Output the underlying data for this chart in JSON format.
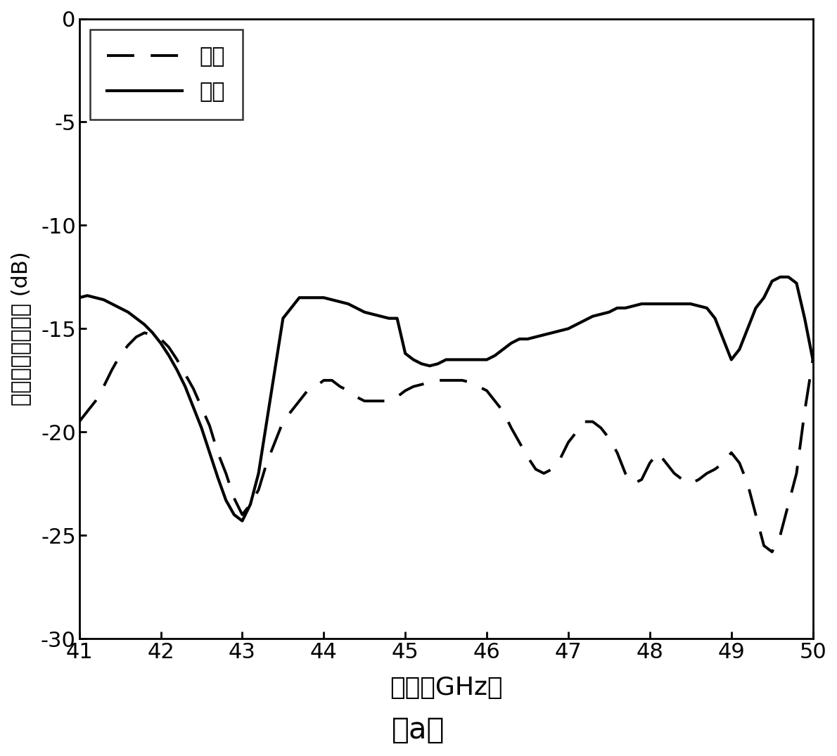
{
  "title_sub": "（a）",
  "xlabel": "频率（GHz）",
  "ylabel": "天线端口反射系数 (dB)",
  "xlim": [
    41,
    50
  ],
  "ylim": [
    -30,
    0
  ],
  "xticks": [
    41,
    42,
    43,
    44,
    45,
    46,
    47,
    48,
    49,
    50
  ],
  "yticks": [
    0,
    -5,
    -10,
    -15,
    -20,
    -25,
    -30
  ],
  "legend_simul": "仿真",
  "legend_meas": "实测",
  "simul_x": [
    41.0,
    41.1,
    41.2,
    41.3,
    41.4,
    41.5,
    41.6,
    41.7,
    41.8,
    41.9,
    42.0,
    42.1,
    42.2,
    42.3,
    42.4,
    42.5,
    42.6,
    42.7,
    42.8,
    42.9,
    43.0,
    43.1,
    43.2,
    43.3,
    43.4,
    43.5,
    43.6,
    43.7,
    43.8,
    43.9,
    44.0,
    44.1,
    44.2,
    44.3,
    44.4,
    44.5,
    44.6,
    44.7,
    44.8,
    44.9,
    45.0,
    45.1,
    45.2,
    45.3,
    45.4,
    45.5,
    45.6,
    45.7,
    45.8,
    45.9,
    46.0,
    46.1,
    46.2,
    46.3,
    46.4,
    46.5,
    46.6,
    46.7,
    46.8,
    46.9,
    47.0,
    47.1,
    47.2,
    47.3,
    47.4,
    47.5,
    47.6,
    47.7,
    47.8,
    47.9,
    48.0,
    48.1,
    48.2,
    48.3,
    48.4,
    48.5,
    48.6,
    48.7,
    48.8,
    48.9,
    49.0,
    49.1,
    49.2,
    49.3,
    49.4,
    49.5,
    49.6,
    49.7,
    49.8,
    49.9,
    50.0
  ],
  "simul_y": [
    -19.5,
    -19.0,
    -18.5,
    -17.8,
    -17.0,
    -16.3,
    -15.8,
    -15.4,
    -15.2,
    -15.3,
    -15.5,
    -15.9,
    -16.5,
    -17.2,
    -17.9,
    -18.8,
    -19.7,
    -21.0,
    -22.0,
    -23.2,
    -24.0,
    -23.5,
    -22.8,
    -21.5,
    -20.5,
    -19.5,
    -19.0,
    -18.5,
    -18.0,
    -17.8,
    -17.5,
    -17.5,
    -17.8,
    -18.0,
    -18.3,
    -18.5,
    -18.5,
    -18.5,
    -18.5,
    -18.3,
    -18.0,
    -17.8,
    -17.7,
    -17.6,
    -17.5,
    -17.5,
    -17.5,
    -17.5,
    -17.6,
    -17.8,
    -18.0,
    -18.5,
    -19.0,
    -19.8,
    -20.5,
    -21.2,
    -21.8,
    -22.0,
    -21.8,
    -21.3,
    -20.5,
    -20.0,
    -19.5,
    -19.5,
    -19.8,
    -20.3,
    -21.0,
    -22.0,
    -22.5,
    -22.3,
    -21.5,
    -21.0,
    -21.5,
    -22.0,
    -22.3,
    -22.5,
    -22.3,
    -22.0,
    -21.8,
    -21.5,
    -21.0,
    -21.5,
    -22.5,
    -24.0,
    -25.5,
    -25.8,
    -25.0,
    -23.5,
    -22.0,
    -19.0,
    -16.5
  ],
  "meas_x": [
    41.0,
    41.1,
    41.2,
    41.3,
    41.4,
    41.5,
    41.6,
    41.7,
    41.8,
    41.9,
    42.0,
    42.1,
    42.2,
    42.3,
    42.4,
    42.5,
    42.6,
    42.7,
    42.8,
    42.9,
    43.0,
    43.1,
    43.2,
    43.3,
    43.4,
    43.5,
    43.6,
    43.7,
    43.8,
    43.9,
    44.0,
    44.1,
    44.2,
    44.3,
    44.4,
    44.5,
    44.6,
    44.7,
    44.8,
    44.9,
    45.0,
    45.1,
    45.2,
    45.3,
    45.4,
    45.5,
    45.6,
    45.7,
    45.8,
    45.9,
    46.0,
    46.1,
    46.2,
    46.3,
    46.4,
    46.5,
    46.6,
    46.7,
    46.8,
    46.9,
    47.0,
    47.1,
    47.2,
    47.3,
    47.4,
    47.5,
    47.6,
    47.7,
    47.8,
    47.9,
    48.0,
    48.1,
    48.2,
    48.3,
    48.4,
    48.5,
    48.6,
    48.7,
    48.8,
    48.9,
    49.0,
    49.1,
    49.2,
    49.3,
    49.4,
    49.5,
    49.6,
    49.7,
    49.8,
    49.9,
    50.0
  ],
  "meas_y": [
    -13.5,
    -13.4,
    -13.5,
    -13.6,
    -13.8,
    -14.0,
    -14.2,
    -14.5,
    -14.8,
    -15.2,
    -15.7,
    -16.3,
    -17.0,
    -17.8,
    -18.8,
    -19.8,
    -21.0,
    -22.2,
    -23.3,
    -24.0,
    -24.3,
    -23.5,
    -22.0,
    -19.5,
    -17.0,
    -14.5,
    -14.0,
    -13.5,
    -13.5,
    -13.5,
    -13.5,
    -13.6,
    -13.7,
    -13.8,
    -14.0,
    -14.2,
    -14.3,
    -14.4,
    -14.5,
    -14.5,
    -16.2,
    -16.5,
    -16.7,
    -16.8,
    -16.7,
    -16.5,
    -16.5,
    -16.5,
    -16.5,
    -16.5,
    -16.5,
    -16.3,
    -16.0,
    -15.7,
    -15.5,
    -15.5,
    -15.4,
    -15.3,
    -15.2,
    -15.1,
    -15.0,
    -14.8,
    -14.6,
    -14.4,
    -14.3,
    -14.2,
    -14.0,
    -14.0,
    -13.9,
    -13.8,
    -13.8,
    -13.8,
    -13.8,
    -13.8,
    -13.8,
    -13.8,
    -13.9,
    -14.0,
    -14.5,
    -15.5,
    -16.5,
    -16.0,
    -15.0,
    -14.0,
    -13.5,
    -12.7,
    -12.5,
    -12.5,
    -12.8,
    -14.5,
    -16.5
  ],
  "line_color": "#000000",
  "background_color": "#ffffff"
}
